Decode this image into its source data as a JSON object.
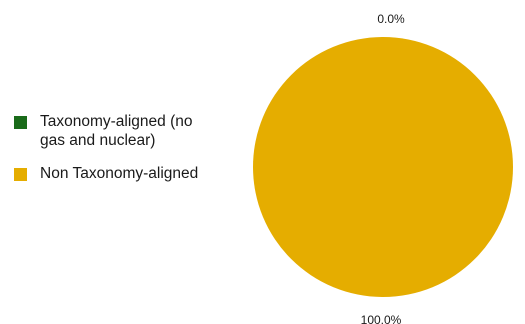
{
  "chart_data": {
    "type": "pie",
    "categories": [
      "Taxonomy-aligned (no gas and nuclear)",
      "Non Taxonomy-aligned"
    ],
    "values": [
      0.0,
      100.0
    ],
    "labels": [
      "0.0%",
      "100.0%"
    ],
    "colors": [
      "#1a6b1a",
      "#e5ad00"
    ],
    "legend": "left"
  },
  "legend": {
    "items": [
      {
        "label": "Taxonomy-aligned (no gas and nuclear)",
        "color": "#1a6b1a"
      },
      {
        "label": "Non Taxonomy-aligned",
        "color": "#e5ad00"
      }
    ]
  }
}
